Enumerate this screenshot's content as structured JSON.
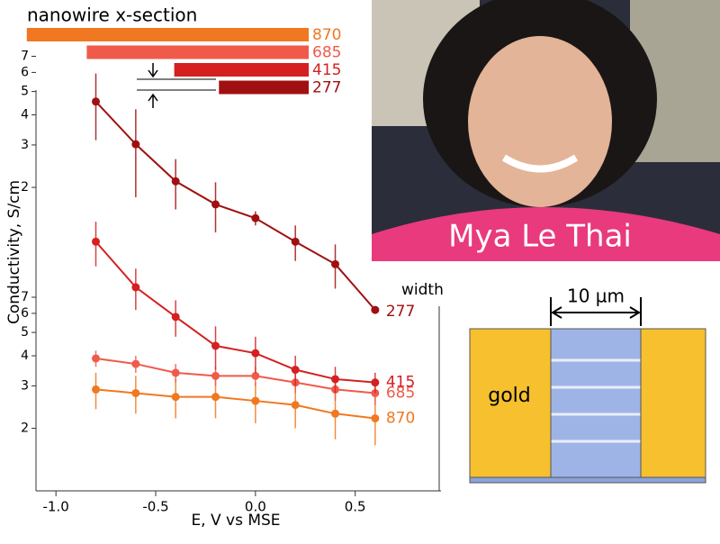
{
  "chart_data": {
    "type": "line",
    "legend_title": "nanowire x-section",
    "width_label": "width",
    "x_label": "E, V vs MSE",
    "y_label": "Conductivity, S/cm",
    "log_y": true,
    "x": [
      -0.8,
      -0.6,
      -0.4,
      -0.2,
      0,
      0.2,
      0.4,
      0.6
    ],
    "xlim": [
      -1.1,
      0.93
    ],
    "xticks": [
      {
        "value": -1,
        "label": "-1.0"
      },
      -0.5,
      {
        "value": 0,
        "label": "0.0"
      },
      0.5
    ],
    "ylim": [
      0.11,
      11
    ],
    "yticks": [
      {
        "value": 0.2,
        "label": "2"
      },
      {
        "value": 0.3,
        "label": "3"
      },
      {
        "value": 0.4,
        "label": "4"
      },
      {
        "value": 0.5,
        "label": "5"
      },
      {
        "value": 0.6,
        "label": "6"
      },
      {
        "value": 0.7,
        "label": "7"
      },
      2,
      3,
      4,
      5,
      6,
      7
    ],
    "series": [
      {
        "name": "870",
        "color": "#f07820",
        "values": [
          0.29,
          0.28,
          0.27,
          0.27,
          0.26,
          0.25,
          0.23,
          0.22
        ],
        "errors": [
          0.05,
          0.05,
          0.05,
          0.05,
          0.05,
          0.05,
          0.05,
          0.05
        ]
      },
      {
        "name": "685",
        "color": "#f05a4a",
        "values": [
          0.39,
          0.37,
          0.34,
          0.33,
          0.33,
          0.31,
          0.29,
          0.28
        ],
        "errors": [
          0.03,
          0.03,
          0.03,
          0.03,
          0.03,
          0.03,
          0.03,
          0.03
        ]
      },
      {
        "name": "415",
        "color": "#d42020",
        "values": [
          1.19,
          0.77,
          0.58,
          0.44,
          0.41,
          0.35,
          0.32,
          0.31
        ],
        "errors": [
          0.25,
          0.15,
          0.1,
          0.09,
          0.07,
          0.05,
          0.04,
          0.03
        ]
      },
      {
        "name": "277",
        "color": "#a01010",
        "values": [
          4.54,
          3.02,
          2.12,
          1.7,
          1.49,
          1.19,
          0.96,
          0.62
        ],
        "errors": [
          1.4,
          1.2,
          0.5,
          0.4,
          0.1,
          0.2,
          0.2,
          0.02
        ]
      }
    ]
  },
  "photo": {
    "caption": "Mya Le Thai"
  },
  "diagram": {
    "scale_label": "10 µm",
    "material_label": "gold"
  }
}
